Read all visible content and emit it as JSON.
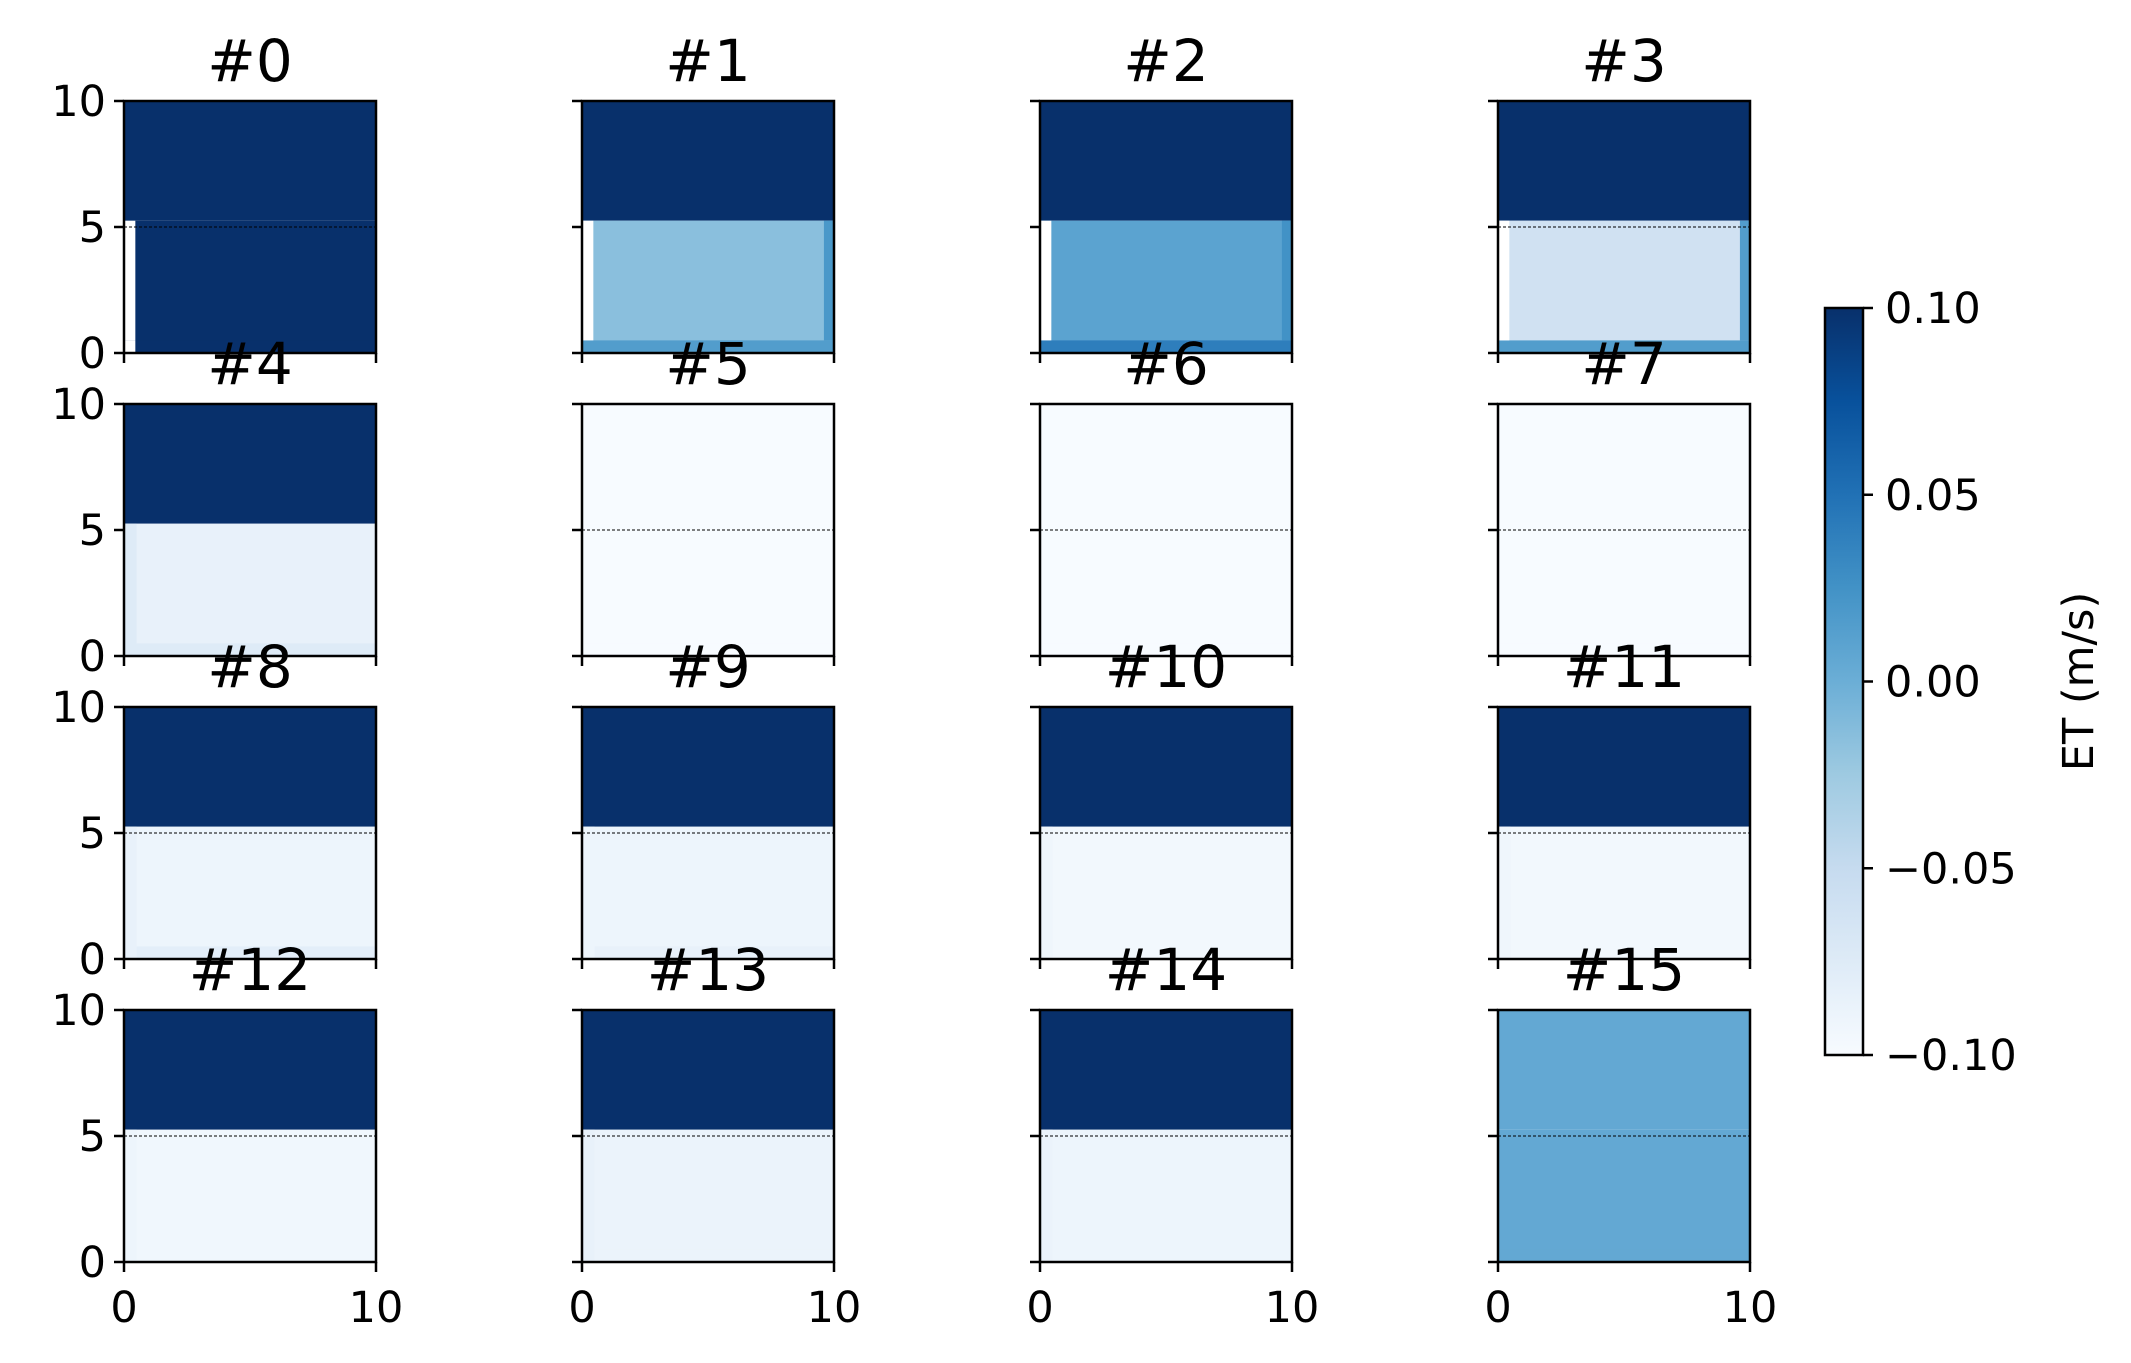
{
  "chart_data": {
    "type": "heatmap",
    "layout": {
      "rows": 4,
      "cols": 4
    },
    "colormap": "Blues",
    "colormap_stops": [
      "#f7fbff",
      "#deebf7",
      "#c6dbef",
      "#9ecae1",
      "#6baed6",
      "#4292c6",
      "#2171b5",
      "#08519c",
      "#08306b"
    ],
    "xlim": [
      0,
      10
    ],
    "ylim": [
      0,
      10
    ],
    "x_ticks": [
      "0",
      "10"
    ],
    "y_ticks": [
      "0",
      "5",
      "10"
    ],
    "colorbar": {
      "label": "ET (m/s)",
      "range": [
        -0.1,
        0.1
      ],
      "ticks": [
        {
          "value": 0.1,
          "label": "0.10"
        },
        {
          "value": 0.05,
          "label": "0.05"
        },
        {
          "value": 0.0,
          "label": "0.00"
        },
        {
          "value": -0.05,
          "label": "−0.05"
        },
        {
          "value": -0.1,
          "label": "−0.10"
        }
      ]
    },
    "panels": [
      {
        "title": "#0",
        "top": 0.1,
        "body": 0.1,
        "bottom": 0.1,
        "left_edge": null,
        "right_edge": null,
        "line_y": 5
      },
      {
        "title": "#1",
        "top": 0.1,
        "body": -0.015,
        "bottom": 0.015,
        "left_edge": null,
        "right_edge": 0.02,
        "line_y": null
      },
      {
        "title": "#2",
        "top": 0.1,
        "body": 0.01,
        "bottom": 0.04,
        "left_edge": null,
        "right_edge": 0.025,
        "line_y": null
      },
      {
        "title": "#3",
        "top": 0.1,
        "body": -0.06,
        "bottom": 0.015,
        "left_edge": null,
        "right_edge": 0.015,
        "line_y": 5
      },
      {
        "title": "#4",
        "top": 0.1,
        "body": -0.085,
        "bottom": -0.075,
        "left_edge": -0.075,
        "right_edge": null,
        "line_y": null
      },
      {
        "title": "#5",
        "top": -0.1,
        "body": -0.1,
        "bottom": -0.1,
        "left_edge": null,
        "right_edge": null,
        "line_y": 5
      },
      {
        "title": "#6",
        "top": -0.1,
        "body": -0.1,
        "bottom": -0.1,
        "left_edge": null,
        "right_edge": null,
        "line_y": 5
      },
      {
        "title": "#7",
        "top": -0.1,
        "body": -0.1,
        "bottom": -0.1,
        "left_edge": null,
        "right_edge": null,
        "line_y": 5
      },
      {
        "title": "#8",
        "top": 0.1,
        "body": -0.09,
        "bottom": -0.08,
        "left_edge": -0.085,
        "right_edge": null,
        "line_y": 5
      },
      {
        "title": "#9",
        "top": 0.1,
        "body": -0.09,
        "bottom": -0.085,
        "left_edge": -0.09,
        "right_edge": null,
        "line_y": 5
      },
      {
        "title": "#10",
        "top": 0.1,
        "body": -0.095,
        "bottom": -0.095,
        "left_edge": -0.092,
        "right_edge": null,
        "line_y": 5
      },
      {
        "title": "#11",
        "top": 0.1,
        "body": -0.095,
        "bottom": -0.095,
        "left_edge": -0.092,
        "right_edge": null,
        "line_y": 5
      },
      {
        "title": "#12",
        "top": 0.1,
        "body": -0.093,
        "bottom": -0.093,
        "left_edge": -0.09,
        "right_edge": null,
        "line_y": 5
      },
      {
        "title": "#13",
        "top": 0.1,
        "body": -0.088,
        "bottom": -0.088,
        "left_edge": -0.085,
        "right_edge": null,
        "line_y": 5
      },
      {
        "title": "#14",
        "top": 0.1,
        "body": -0.09,
        "bottom": -0.09,
        "left_edge": -0.088,
        "right_edge": null,
        "line_y": 5
      },
      {
        "title": "#15",
        "top": 0.005,
        "body": 0.005,
        "bottom": 0.005,
        "left_edge": null,
        "right_edge": null,
        "line_y": 5
      }
    ]
  }
}
